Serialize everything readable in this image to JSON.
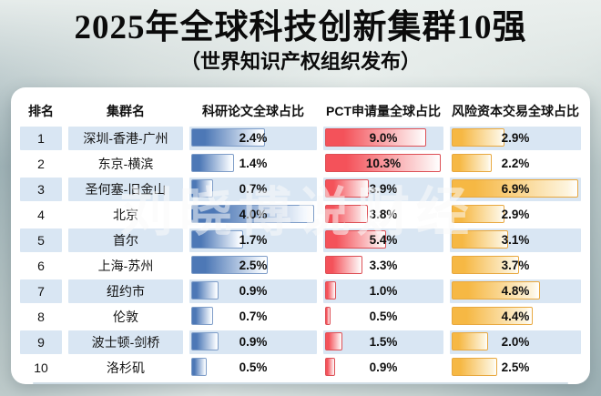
{
  "title": "2025年全球科技创新集群10强",
  "subtitle": "（世界知识产权组织发布）",
  "watermark": "刘晓博说财经",
  "colors": {
    "stripe": "#d9e6f3",
    "paper_bar": "#4d78b6",
    "paper_border": "#7e9dc8",
    "pct_bar": "#f4525a",
    "pct_border": "#dd4f55",
    "vc_bar": "#f6b844",
    "vc_border": "#e8a83f"
  },
  "table": {
    "headers": [
      "排名",
      "集群名",
      "科研论文全球占比",
      "PCT申请量全球占比",
      "风险资本交易全球占比"
    ],
    "col_max": {
      "paper": 4.0,
      "pct": 10.3,
      "vc": 6.9
    },
    "rows": [
      {
        "rank": "1",
        "cluster": "深圳-香港-广州",
        "paper": 2.4,
        "pct": 9.0,
        "vc": 2.9
      },
      {
        "rank": "2",
        "cluster": "东京-横滨",
        "paper": 1.4,
        "pct": 10.3,
        "vc": 2.2
      },
      {
        "rank": "3",
        "cluster": "圣何塞-旧金山",
        "paper": 0.7,
        "pct": 3.9,
        "vc": 6.9
      },
      {
        "rank": "4",
        "cluster": "北京",
        "paper": 4.0,
        "pct": 3.8,
        "vc": 2.9
      },
      {
        "rank": "5",
        "cluster": "首尔",
        "paper": 1.7,
        "pct": 5.4,
        "vc": 3.1
      },
      {
        "rank": "6",
        "cluster": "上海-苏州",
        "paper": 2.5,
        "pct": 3.3,
        "vc": 3.7
      },
      {
        "rank": "7",
        "cluster": "纽约市",
        "paper": 0.9,
        "pct": 1.0,
        "vc": 4.8
      },
      {
        "rank": "8",
        "cluster": "伦敦",
        "paper": 0.7,
        "pct": 0.5,
        "vc": 4.4
      },
      {
        "rank": "9",
        "cluster": "波士顿-剑桥",
        "paper": 0.9,
        "pct": 1.5,
        "vc": 2.0
      },
      {
        "rank": "10",
        "cluster": "洛杉矶",
        "paper": 0.5,
        "pct": 0.9,
        "vc": 2.5
      }
    ]
  },
  "chart_data": {
    "type": "table",
    "title": "2025年全球科技创新集群10强",
    "subtitle": "（世界知识产权组织发布）",
    "columns": [
      "排名",
      "集群名",
      "科研论文全球占比",
      "PCT申请量全球占比",
      "风险资本交易全球占比"
    ],
    "categories": [
      "深圳-香港-广州",
      "东京-横滨",
      "圣何塞-旧金山",
      "北京",
      "首尔",
      "上海-苏州",
      "纽约市",
      "伦敦",
      "波士顿-剑桥",
      "洛杉矶"
    ],
    "series": [
      {
        "name": "科研论文全球占比",
        "unit": "%",
        "color": "#4d78b6",
        "axis_max": 4.0,
        "values": [
          2.4,
          1.4,
          0.7,
          4.0,
          1.7,
          2.5,
          0.9,
          0.7,
          0.9,
          0.5
        ]
      },
      {
        "name": "PCT申请量全球占比",
        "unit": "%",
        "color": "#f4525a",
        "axis_max": 10.3,
        "values": [
          9.0,
          10.3,
          3.9,
          3.8,
          5.4,
          3.3,
          1.0,
          0.5,
          1.5,
          0.9
        ]
      },
      {
        "name": "风险资本交易全球占比",
        "unit": "%",
        "color": "#f6b844",
        "axis_max": 6.9,
        "values": [
          2.9,
          2.2,
          6.9,
          2.9,
          3.1,
          3.7,
          4.8,
          4.4,
          2.0,
          2.5
        ]
      }
    ],
    "bar_style": "left-aligned gradient data bars, length proportional to value per column max",
    "legend_position": "none",
    "grid": false
  }
}
